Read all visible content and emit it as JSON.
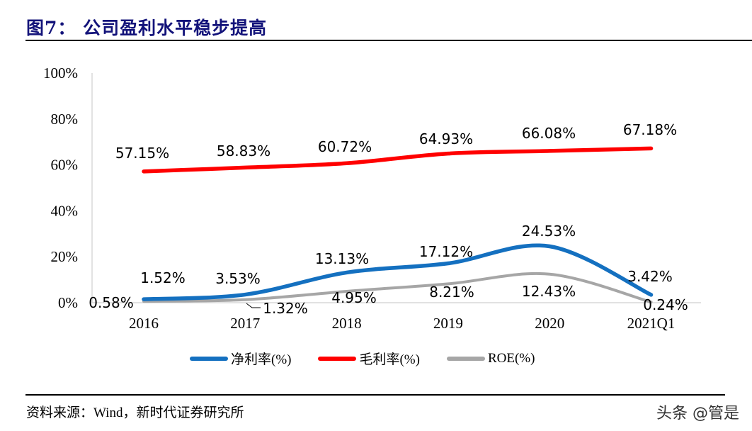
{
  "title": "图7：  公司盈利水平稳步提高",
  "source": "资料来源：Wind，新时代证券研究所",
  "watermark": "头条 @管是",
  "chart_data": {
    "type": "line",
    "categories": [
      "2016",
      "2017",
      "2018",
      "2019",
      "2020",
      "2021Q1"
    ],
    "ylim": [
      0,
      100
    ],
    "yticks": [
      "0%",
      "20%",
      "40%",
      "60%",
      "80%",
      "100%"
    ],
    "grid": false,
    "legend_position": "bottom",
    "series": [
      {
        "name": "净利率(%)",
        "color": "#1470c0",
        "values": [
          1.52,
          3.53,
          13.13,
          17.12,
          24.53,
          3.42
        ],
        "labels": [
          "1.52%",
          "3.53%",
          "13.13%",
          "17.12%",
          "24.53%",
          "3.42%"
        ]
      },
      {
        "name": "毛利率(%)",
        "color": "#ff0000",
        "values": [
          57.15,
          58.83,
          60.72,
          64.93,
          66.08,
          67.18
        ],
        "labels": [
          "57.15%",
          "58.83%",
          "60.72%",
          "64.93%",
          "66.08%",
          "67.18%"
        ]
      },
      {
        "name": "ROE(%)",
        "color": "#a6a6a6",
        "values": [
          0.58,
          1.32,
          4.95,
          8.21,
          12.43,
          0.24
        ],
        "labels": [
          "0.58%",
          "1.32%",
          "4.95%",
          "8.21%",
          "12.43%",
          "0.24%"
        ]
      }
    ]
  }
}
